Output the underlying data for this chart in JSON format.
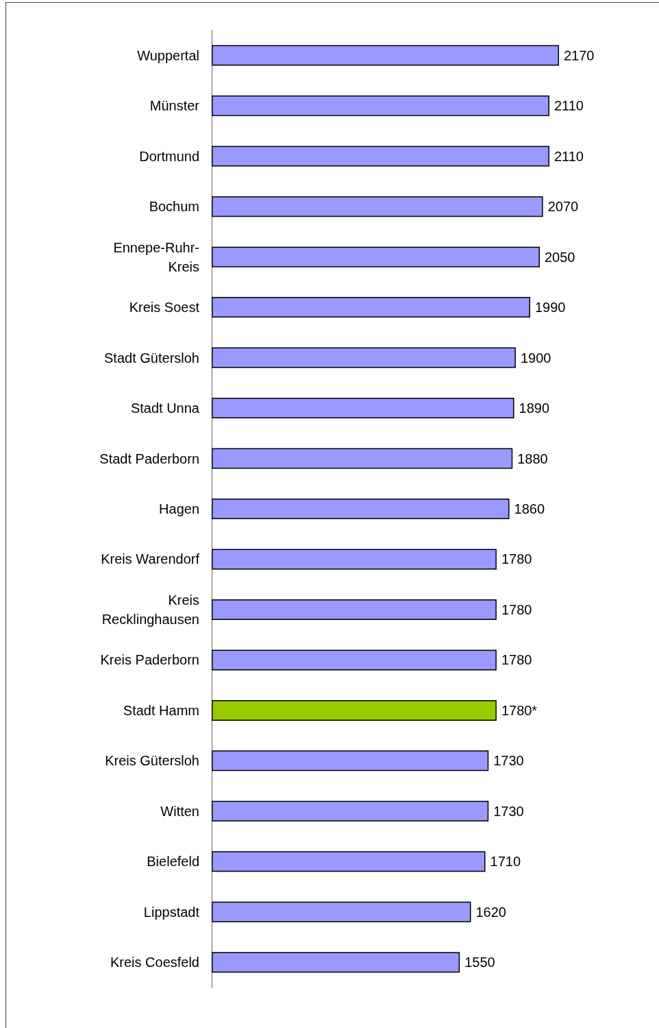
{
  "chart_data": {
    "type": "bar",
    "orientation": "horizontal",
    "categories": [
      "Wuppertal",
      "Münster",
      "Dortmund",
      "Bochum",
      "Ennepe-Ruhr-Kreis",
      "Kreis Soest",
      "Stadt Gütersloh",
      "Stadt Unna",
      "Stadt Paderborn",
      "Hagen",
      "Kreis Warendorf",
      "Kreis Recklinghausen",
      "Kreis Paderborn",
      "Stadt Hamm",
      "Kreis Gütersloh",
      "Witten",
      "Bielefeld",
      "Lippstadt",
      "Kreis Coesfeld"
    ],
    "values": [
      2170,
      2110,
      2110,
      2070,
      2050,
      1990,
      1900,
      1890,
      1880,
      1860,
      1780,
      1780,
      1780,
      1780,
      1730,
      1730,
      1710,
      1620,
      1550
    ],
    "colors": [
      "#9999ff",
      "#9999ff",
      "#9999ff",
      "#9999ff",
      "#9999ff",
      "#9999ff",
      "#9999ff",
      "#9999ff",
      "#9999ff",
      "#9999ff",
      "#9999ff",
      "#9999ff",
      "#9999ff",
      "#99cc00",
      "#9999ff",
      "#9999ff",
      "#9999ff",
      "#9999ff",
      "#9999ff"
    ],
    "value_labels": [
      "2170",
      "2110",
      "2110",
      "2070",
      "2050",
      "1990",
      "1900",
      "1890",
      "1880",
      "1860",
      "1780",
      "1780",
      "1780",
      "1780*",
      "1730",
      "1730",
      "1710",
      "1620",
      "1550"
    ],
    "grid": false
  }
}
